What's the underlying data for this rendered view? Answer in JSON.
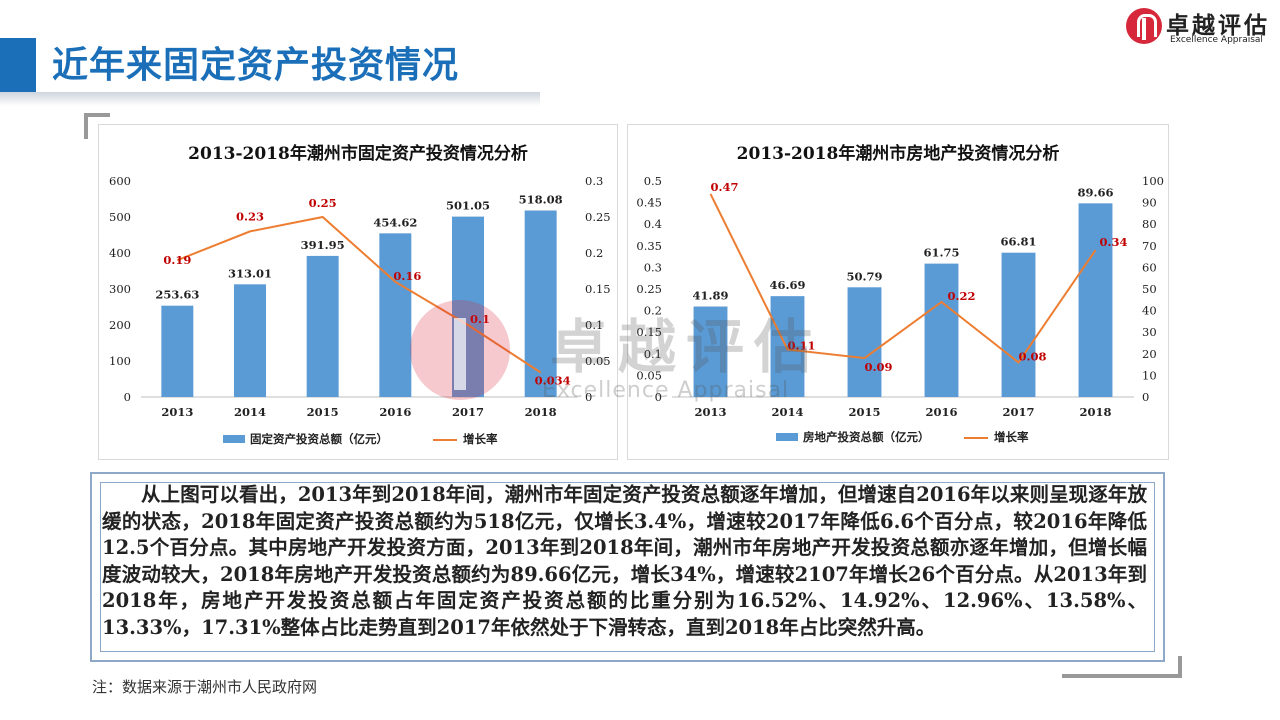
{
  "header": {
    "title": "近年来固定资产投资情况",
    "logo_cn": "卓越评估",
    "logo_en": "Excellence Appraisal"
  },
  "watermark": {
    "cn": "卓越评估",
    "en": "Excellence Appraisal"
  },
  "colors": {
    "accent": "#1a6fb8",
    "bar": "#5b9bd5",
    "line": "#ed7d31",
    "label_red": "#c00000",
    "logo_red": "#d6283a"
  },
  "chart_data": [
    {
      "type": "bar",
      "title": "2013-2018年潮州市固定资产投资情况分析",
      "categories": [
        "2013",
        "2014",
        "2015",
        "2016",
        "2017",
        "2018"
      ],
      "series": [
        {
          "name": "固定资产投资总额（亿元）",
          "type": "bar",
          "axis": "left",
          "values": [
            253.63,
            313.01,
            391.95,
            454.62,
            501.05,
            518.08
          ],
          "labels": [
            "253.63",
            "313.01",
            "391.95",
            "454.62",
            "501.05",
            "518.08"
          ]
        },
        {
          "name": "增长率",
          "type": "line",
          "axis": "right",
          "values": [
            0.19,
            0.23,
            0.25,
            0.16,
            0.1,
            0.034
          ],
          "labels": [
            "0.19",
            "0.23",
            "0.25",
            "0.16",
            "0.1",
            "0.034"
          ]
        }
      ],
      "ylim_left": [
        0,
        600
      ],
      "yticks_left": [
        "0",
        "100",
        "200",
        "300",
        "400",
        "500",
        "600"
      ],
      "ylim_right": [
        0,
        0.3
      ],
      "yticks_right": [
        "0",
        "0.05",
        "0.1",
        "0.15",
        "0.2",
        "0.25",
        "0.3"
      ],
      "legend": "bottom"
    },
    {
      "type": "bar",
      "title": "2013-2018年潮州市房地产投资情况分析",
      "categories": [
        "2013",
        "2014",
        "2015",
        "2016",
        "2017",
        "2018"
      ],
      "series": [
        {
          "name": "房地产投资总额（亿元）",
          "type": "bar",
          "axis": "right",
          "values": [
            41.89,
            46.69,
            50.79,
            61.75,
            66.81,
            89.66
          ],
          "labels": [
            "41.89",
            "46.69",
            "50.79",
            "61.75",
            "66.81",
            "89.66"
          ]
        },
        {
          "name": "增长率",
          "type": "line",
          "axis": "left",
          "values": [
            0.47,
            0.11,
            0.09,
            0.22,
            0.08,
            0.34
          ],
          "labels": [
            "0.47",
            "0.11",
            "0.09",
            "0.22",
            "0.08",
            "0.34"
          ]
        }
      ],
      "ylim_left": [
        0,
        0.5
      ],
      "yticks_left": [
        "0",
        "0.05",
        "0.1",
        "0.15",
        "0.2",
        "0.25",
        "0.3",
        "0.35",
        "0.4",
        "0.45",
        "0.5"
      ],
      "ylim_right": [
        0,
        100
      ],
      "yticks_right": [
        "0",
        "10",
        "20",
        "30",
        "40",
        "50",
        "60",
        "70",
        "80",
        "90",
        "100"
      ],
      "legend": "bottom"
    }
  ],
  "body_text": "从上图可以看出，2013年到2018年间，潮州市年固定资产投资总额逐年增加，但增速自2016年以来则呈现逐年放缓的状态，2018年固定资产投资总额约为518亿元，仅增长3.4%，增速较2017年降低6.6个百分点，较2016年降低12.5个百分点。其中房地产开发投资方面，2013年到2018年间，潮州市年房地产开发投资总额亦逐年增加，但增长幅度波动较大，2018年房地产开发投资总额约为89.66亿元，增长34%，增速较2107年增长26个百分点。从2013年到2018年，房地产开发投资总额占年固定资产投资总额的比重分别为16.52%、14.92%、12.96%、13.58%、13.33%，17.31%整体占比走势直到2017年依然处于下滑转态，直到2018年占比突然升高。",
  "footnote": "注：数据来源于潮州市人民政府网"
}
